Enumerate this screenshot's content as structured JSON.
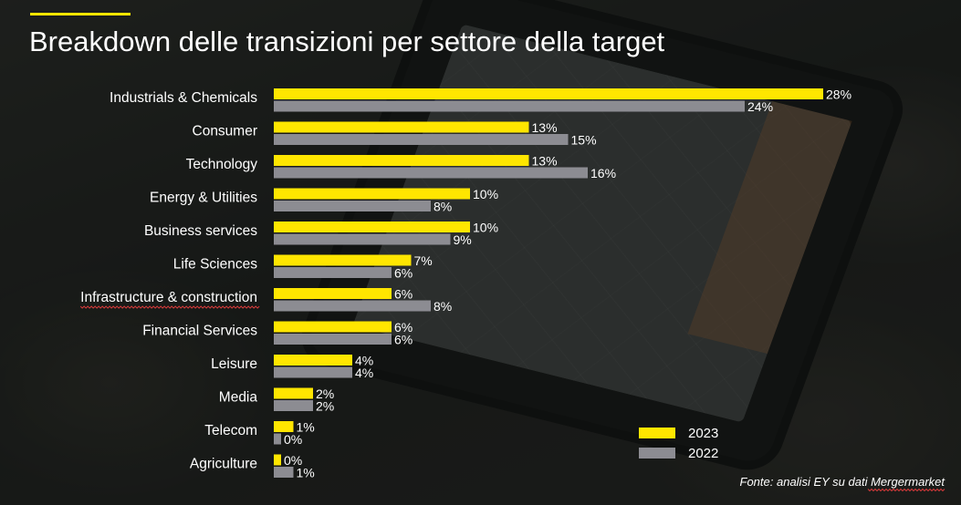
{
  "title": "Breakdown delle transizioni per settore della target",
  "source": "Fonte: analisi EY su dati Mergermarket",
  "colors": {
    "accent": "#ffe600",
    "series_2023": "#ffe600",
    "series_2022": "#8c8c92"
  },
  "legend": [
    {
      "label": "2023",
      "color": "#ffe600"
    },
    {
      "label": "2022",
      "color": "#8c8c92"
    }
  ],
  "chart_data": {
    "type": "bar",
    "orientation": "horizontal",
    "title": "Breakdown delle transizioni per settore della target",
    "categories": [
      "Industrials & Chemicals",
      "Consumer",
      "Technology",
      "Energy & Utilities",
      "Business services",
      "Life Sciences",
      "Infrastructure & construction",
      "Financial Services",
      "Leisure",
      "Media",
      "Telecom",
      "Agriculture"
    ],
    "series": [
      {
        "name": "2023",
        "color": "#ffe600",
        "values": [
          28,
          13,
          13,
          10,
          10,
          7,
          6,
          6,
          4,
          2,
          1,
          0
        ]
      },
      {
        "name": "2022",
        "color": "#8c8c92",
        "values": [
          24,
          15,
          16,
          8,
          9,
          6,
          8,
          6,
          4,
          2,
          0,
          1
        ]
      }
    ],
    "value_labels": [
      [
        "28%",
        "13%",
        "13%",
        "10%",
        "10%",
        "7%",
        "6%",
        "6%",
        "4%",
        "2%",
        "1%",
        "0%"
      ],
      [
        "24%",
        "15%",
        "16%",
        "8%",
        "9%",
        "6%",
        "8%",
        "6%",
        "4%",
        "2%",
        "0%",
        "1%"
      ]
    ],
    "unit": "%",
    "legend_position": "bottom-right",
    "grid": false
  }
}
